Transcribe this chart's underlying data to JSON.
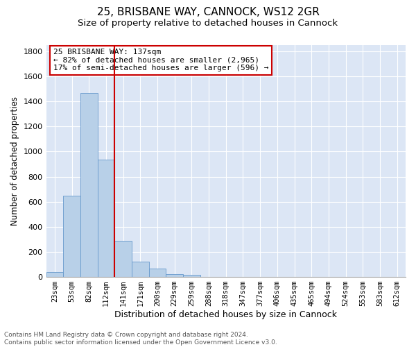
{
  "title": "25, BRISBANE WAY, CANNOCK, WS12 2GR",
  "subtitle": "Size of property relative to detached houses in Cannock",
  "xlabel": "Distribution of detached houses by size in Cannock",
  "ylabel": "Number of detached properties",
  "categories": [
    "23sqm",
    "53sqm",
    "82sqm",
    "112sqm",
    "141sqm",
    "171sqm",
    "200sqm",
    "229sqm",
    "259sqm",
    "288sqm",
    "318sqm",
    "347sqm",
    "377sqm",
    "406sqm",
    "435sqm",
    "465sqm",
    "494sqm",
    "524sqm",
    "553sqm",
    "583sqm",
    "612sqm"
  ],
  "values": [
    38,
    650,
    1470,
    935,
    290,
    125,
    65,
    22,
    15,
    0,
    0,
    0,
    0,
    0,
    0,
    0,
    0,
    0,
    0,
    0,
    0
  ],
  "bar_color": "#b8d0e8",
  "bar_edge_color": "#6699cc",
  "vline_color": "#cc0000",
  "annotation_text": "25 BRISBANE WAY: 137sqm\n← 82% of detached houses are smaller (2,965)\n17% of semi-detached houses are larger (596) →",
  "annotation_box_color": "#ffffff",
  "annotation_box_edge_color": "#cc0000",
  "ylim": [
    0,
    1850
  ],
  "yticks": [
    0,
    200,
    400,
    600,
    800,
    1000,
    1200,
    1400,
    1600,
    1800
  ],
  "background_color": "#dce6f5",
  "grid_color": "#ffffff",
  "footer_text": "Contains HM Land Registry data © Crown copyright and database right 2024.\nContains public sector information licensed under the Open Government Licence v3.0.",
  "title_fontsize": 11,
  "subtitle_fontsize": 9.5,
  "annotation_fontsize": 8,
  "footer_fontsize": 6.5,
  "ylabel_fontsize": 8.5,
  "xlabel_fontsize": 9,
  "tick_fontsize": 7.5,
  "ytick_fontsize": 8
}
